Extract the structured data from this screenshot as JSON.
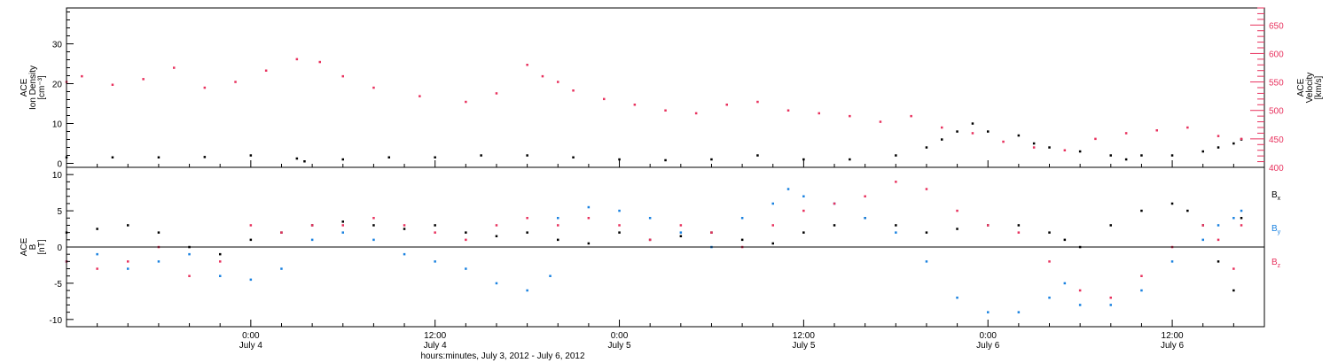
{
  "chart_data": [
    {
      "type": "scatter",
      "ylabel_lines": [
        "ACE",
        "Ion Density",
        "[cm⁻³]"
      ],
      "ylabel_right_lines": [
        "ACE",
        "Velocity",
        "[km/s]"
      ],
      "ylim": [
        -1,
        39
      ],
      "ylim_right": [
        400,
        680
      ],
      "yticks": [
        0,
        10,
        20,
        30
      ],
      "yticks_right": [
        400,
        450,
        500,
        550,
        600,
        650
      ],
      "xlim_hours": [
        0,
        78
      ],
      "colors": {
        "density": "#000000",
        "velocity": "#e8325e"
      },
      "density": {
        "x": [
          0,
          3,
          6,
          9,
          12,
          15,
          15.5,
          18,
          21,
          24,
          27,
          30,
          33,
          36,
          39,
          42,
          45,
          48,
          51,
          54,
          56,
          57,
          58,
          59,
          60,
          62,
          63,
          64,
          66,
          68,
          69,
          70,
          72,
          74,
          75,
          76,
          76.5
        ],
        "y": [
          1.5,
          1.5,
          1.5,
          1.6,
          2,
          1.2,
          0.5,
          1,
          1.5,
          1.5,
          2,
          2,
          1.5,
          1,
          0.8,
          1,
          2,
          1,
          1,
          2,
          4,
          6,
          8,
          10,
          8,
          7,
          5,
          4,
          3,
          2,
          1,
          2,
          2,
          3,
          4,
          5,
          6
        ]
      },
      "velocity": {
        "x": [
          0,
          1,
          3,
          5,
          7,
          9,
          11,
          13,
          15,
          16.5,
          18,
          20,
          23,
          26,
          28,
          30,
          31,
          32,
          33,
          35,
          37,
          39,
          41,
          43,
          45,
          47,
          49,
          51,
          53,
          55,
          57,
          59,
          61,
          63,
          65,
          67,
          69,
          71,
          73,
          75,
          76.5
        ],
        "y": [
          550,
          560,
          545,
          555,
          575,
          540,
          550,
          570,
          590,
          585,
          560,
          540,
          525,
          515,
          530,
          580,
          560,
          550,
          535,
          520,
          510,
          500,
          495,
          510,
          515,
          500,
          495,
          490,
          480,
          490,
          470,
          460,
          445,
          435,
          430,
          450,
          460,
          465,
          470,
          455,
          450
        ]
      }
    },
    {
      "type": "scatter",
      "ylabel_lines": [
        "ACE",
        "B",
        "[nT]"
      ],
      "ylim": [
        -11,
        11
      ],
      "yticks": [
        -10,
        -5,
        0,
        5,
        10
      ],
      "legend_entries": [
        {
          "main": "B",
          "sub": "x",
          "color": "#000000"
        },
        {
          "main": "B",
          "sub": "y",
          "color": "#1a82e0"
        },
        {
          "main": "B",
          "sub": "z",
          "color": "#e8325e"
        }
      ],
      "bx": {
        "x": [
          0,
          2,
          4,
          6,
          8,
          10,
          12,
          14,
          16,
          18,
          20,
          22,
          24,
          26,
          28,
          30,
          32,
          34,
          36,
          38,
          40,
          42,
          44,
          46,
          48,
          50,
          52,
          54,
          56,
          58,
          60,
          62,
          64,
          65,
          66,
          68,
          70,
          72,
          73,
          74,
          75,
          76,
          76.5
        ],
        "y": [
          2,
          2.5,
          3,
          2,
          0,
          -1,
          1,
          2,
          3,
          3.5,
          3,
          2.5,
          3,
          2,
          1.5,
          2,
          1,
          0.5,
          2,
          1,
          1.5,
          2,
          1,
          0.5,
          2,
          3,
          4,
          3,
          2,
          2.5,
          3,
          3,
          2,
          1,
          0,
          3,
          5,
          6,
          5,
          3,
          -2,
          -6,
          4
        ]
      },
      "by": {
        "x": [
          0,
          2,
          4,
          6,
          8,
          10,
          12,
          14,
          16,
          18,
          20,
          22,
          24,
          26,
          28,
          30,
          31.5,
          32,
          34,
          36,
          38,
          40,
          42,
          44,
          46,
          47,
          48,
          50,
          52,
          54,
          56,
          58,
          60,
          62,
          64,
          65,
          66,
          68,
          70,
          72,
          74,
          75,
          76,
          76.5
        ],
        "y": [
          -2,
          -1,
          -3,
          -2,
          -1,
          -4,
          -4.5,
          -3,
          1,
          2,
          1,
          -1,
          -2,
          -3,
          -5,
          -6,
          -4,
          4,
          5.5,
          5,
          4,
          2,
          0,
          4,
          6,
          8,
          7,
          6,
          4,
          2,
          -2,
          -7,
          -9,
          -9,
          -7,
          -5,
          -8,
          -8,
          -6,
          -2,
          1,
          3,
          4,
          5
        ]
      },
      "bz": {
        "x": [
          0,
          2,
          4,
          6,
          8,
          10,
          12,
          14,
          16,
          18,
          20,
          22,
          24,
          26,
          28,
          30,
          32,
          34,
          36,
          38,
          40,
          42,
          44,
          46,
          48,
          50,
          52,
          54,
          56,
          58,
          60,
          62,
          64,
          66,
          68,
          70,
          72,
          74,
          75,
          76,
          76.5
        ],
        "y": [
          -2,
          -3,
          -2,
          0,
          -4,
          -2,
          3,
          2,
          3,
          3,
          4,
          3,
          2,
          1,
          3,
          4,
          3,
          4,
          3,
          1,
          3,
          2,
          0,
          3,
          5,
          6,
          7,
          9,
          8,
          5,
          3,
          2,
          -2,
          -6,
          -7,
          -4,
          0,
          3,
          1,
          -3,
          3
        ]
      },
      "xticks": [
        {
          "hours": 12,
          "time": "0:00",
          "date": "July 4"
        },
        {
          "hours": 24,
          "time": "12:00",
          "date": "July 4"
        },
        {
          "hours": 36,
          "time": "0:00",
          "date": "July 5"
        },
        {
          "hours": 48,
          "time": "12:00",
          "date": "July 5"
        },
        {
          "hours": 60,
          "time": "0:00",
          "date": "July 6"
        },
        {
          "hours": 72,
          "time": "12:00",
          "date": "July 6"
        }
      ],
      "xlabel": "hours:minutes, July  3, 2012 - July  6, 2012",
      "xlim_hours": [
        0,
        78
      ]
    }
  ]
}
